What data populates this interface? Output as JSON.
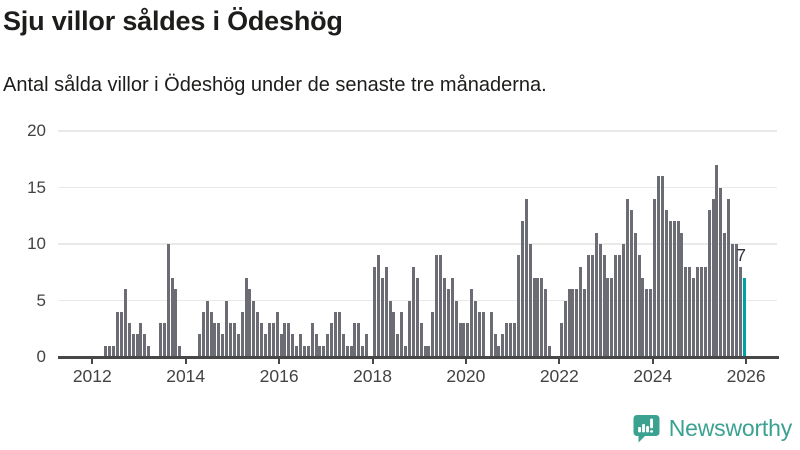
{
  "header": {
    "title": "Sju villor såldes i Ödeshög",
    "subtitle": "Antal sålda villor i Ödeshög under de senaste tre månaderna."
  },
  "annotation": {
    "label": "7"
  },
  "logo": {
    "text": "Newsworthy",
    "icon": "newsworthy-speech-bubble-bar-chart-icon"
  },
  "colors": {
    "bar": "#6c6c74",
    "highlight": "#00a1a5",
    "grid": "#e9e9e9",
    "axis": "#434343",
    "baseline": "#474747",
    "text": "#1d1d1b",
    "logo": "#3ba191"
  },
  "chart_data": {
    "type": "bar",
    "title": "Sju villor såldes i Ödeshög",
    "subtitle": "Antal sålda villor i Ödeshög under de senaste tre månaderna.",
    "xlabel": "",
    "ylabel": "",
    "start_period": "2012-01",
    "frequency": "monthly",
    "ylim": [
      0,
      20
    ],
    "y_ticks": [
      0,
      5,
      10,
      15,
      20
    ],
    "x_tick_labels": [
      "2012",
      "2014",
      "2016",
      "2018",
      "2020",
      "2022",
      "2024",
      "2026"
    ],
    "grid": true,
    "legend": false,
    "highlight_last_value": 7,
    "values": [
      0,
      0,
      0,
      1,
      1,
      1,
      4,
      4,
      6,
      3,
      2,
      2,
      3,
      2,
      1,
      0,
      0,
      3,
      3,
      10,
      7,
      6,
      1,
      0,
      0,
      0,
      0,
      2,
      4,
      5,
      4,
      3,
      3,
      2,
      5,
      3,
      3,
      2,
      4,
      7,
      6,
      5,
      4,
      3,
      2,
      3,
      3,
      4,
      2,
      3,
      3,
      2,
      1,
      2,
      1,
      1,
      3,
      2,
      1,
      1,
      2,
      3,
      4,
      4,
      2,
      1,
      1,
      3,
      3,
      1,
      2,
      0,
      8,
      9,
      7,
      8,
      5,
      4,
      2,
      4,
      1,
      5,
      8,
      7,
      3,
      1,
      1,
      4,
      9,
      9,
      7,
      6,
      7,
      5,
      3,
      3,
      3,
      6,
      5,
      4,
      4,
      0,
      4,
      2,
      1,
      2,
      3,
      3,
      3,
      9,
      12,
      14,
      10,
      7,
      7,
      7,
      6,
      1,
      0,
      0,
      3,
      5,
      6,
      6,
      6,
      8,
      6,
      9,
      9,
      11,
      10,
      9,
      7,
      7,
      9,
      9,
      10,
      14,
      13,
      11,
      9,
      7,
      6,
      6,
      14,
      16,
      16,
      13,
      12,
      12,
      12,
      11,
      8,
      8,
      7,
      8,
      8,
      8,
      13,
      14,
      17,
      15,
      11,
      14,
      10,
      10,
      8,
      7
    ]
  }
}
